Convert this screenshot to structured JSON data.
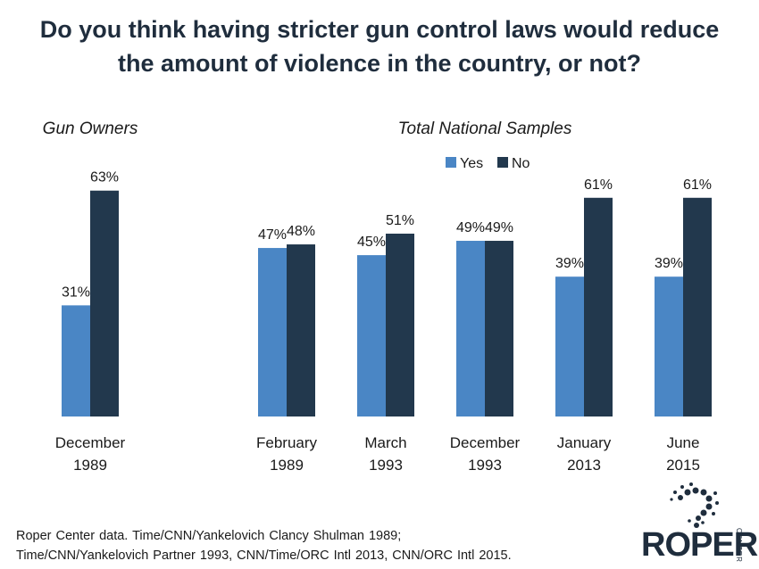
{
  "title_line1": "Do you think having stricter gun control laws would reduce",
  "title_line2": "the amount of violence in the country, or not?",
  "footer_line1": "Roper Center data. Time/CNN/Yankelovich Clancy Shulman 1989;",
  "footer_line2": "Time/CNN/Yankelovich Partner 1993, CNN/Time/ORC Intl 2013, CNN/ORC Intl 2015.",
  "logo": {
    "word": "ROPER",
    "sub": "CENTER"
  },
  "colors": {
    "yes": "#4a86c5",
    "no": "#22384d",
    "title": "#1f2d3d"
  },
  "chart_data": {
    "type": "bar",
    "unit": "%",
    "groups": [
      {
        "label": "Gun Owners",
        "categories": [
          [
            "December",
            "1989"
          ]
        ],
        "series": [
          {
            "name": "Yes",
            "values": [
              31
            ]
          },
          {
            "name": "No",
            "values": [
              63
            ]
          }
        ]
      },
      {
        "label": "Total National Samples",
        "categories": [
          [
            "February",
            "1989"
          ],
          [
            "March",
            "1993"
          ],
          [
            "December",
            "1993"
          ],
          [
            "January",
            "2013"
          ],
          [
            "June",
            "2015"
          ]
        ],
        "series": [
          {
            "name": "Yes",
            "values": [
              47,
              45,
              49,
              39,
              39
            ]
          },
          {
            "name": "No",
            "values": [
              48,
              51,
              49,
              61,
              61
            ]
          }
        ]
      }
    ],
    "legend": {
      "placement": "top",
      "entries": [
        "Yes",
        "No"
      ]
    },
    "grid": false
  }
}
